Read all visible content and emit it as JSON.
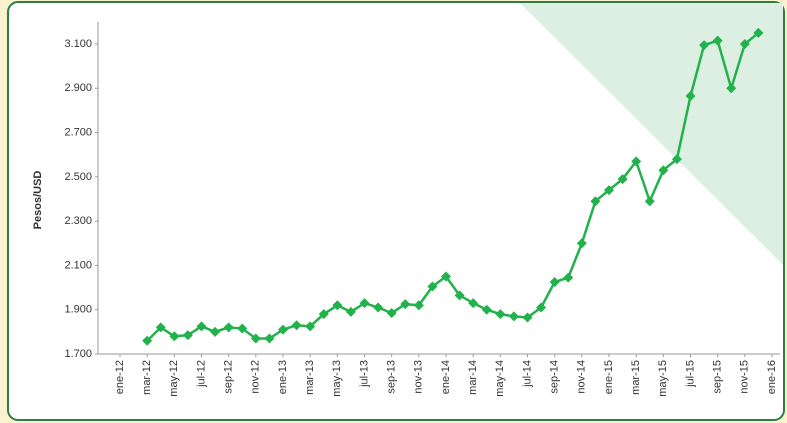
{
  "chart_data": {
    "type": "line",
    "ylabel": "Pesos/USD",
    "categories": [
      "ene-12",
      null,
      "mar-12",
      null,
      "may-12",
      null,
      "jul-12",
      null,
      "sep-12",
      null,
      "nov-12",
      null,
      "ene-13",
      null,
      "mar-13",
      null,
      "may-13",
      null,
      "jul-13",
      null,
      "sep-13",
      null,
      "nov-13",
      null,
      "ene-14",
      null,
      "mar-14",
      null,
      "may-14",
      null,
      "jul-14",
      null,
      "sep-14",
      null,
      "nov-14",
      null,
      "ene-15",
      null,
      "mar-15",
      null,
      "may-15",
      null,
      "jul-15",
      null,
      "sep-15",
      null,
      "nov-15",
      null,
      "ene-16"
    ],
    "series": [
      {
        "name": "Pesos/USD",
        "color": "#22b24c",
        "values": [
          null,
          null,
          1760,
          1820,
          1780,
          1785,
          1825,
          1800,
          1820,
          1815,
          1770,
          1770,
          1810,
          1830,
          1825,
          1880,
          1920,
          1890,
          1930,
          1910,
          1885,
          1925,
          1920,
          2005,
          2050,
          1965,
          1930,
          1900,
          1880,
          1870,
          1865,
          1910,
          2025,
          2045,
          2200,
          2390,
          2440,
          2490,
          2570,
          2390,
          2530,
          2580,
          2865,
          3095,
          3115,
          2900,
          3100,
          3150,
          null
        ]
      }
    ],
    "ylim": [
      1700,
      3200
    ],
    "yticks": [
      {
        "value": 1700,
        "label": "1.700"
      },
      {
        "value": 1900,
        "label": "1.900"
      },
      {
        "value": 2100,
        "label": "2.100"
      },
      {
        "value": 2300,
        "label": "2.300"
      },
      {
        "value": 2500,
        "label": "2.500"
      },
      {
        "value": 2700,
        "label": "2.700"
      },
      {
        "value": 2900,
        "label": "2.900"
      },
      {
        "value": 3100,
        "label": "3.100"
      }
    ]
  }
}
